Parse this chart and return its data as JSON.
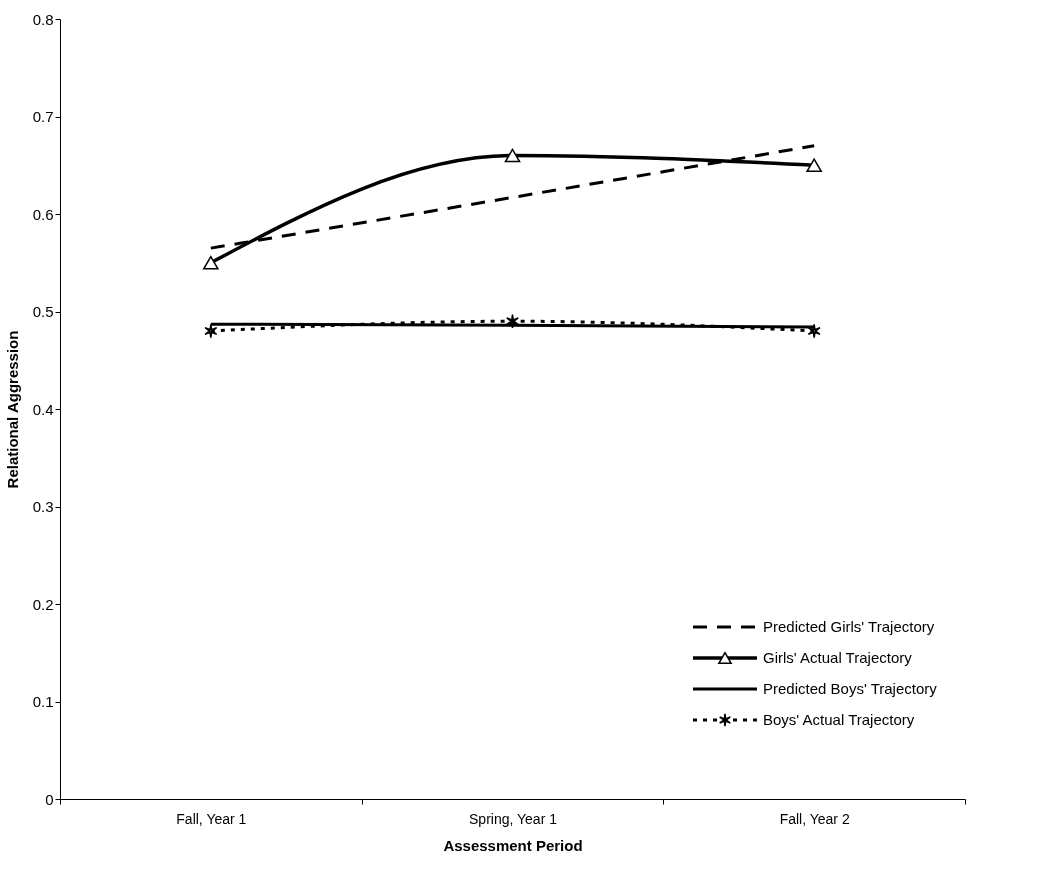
{
  "chart_data": {
    "type": "line",
    "xlabel": "Assessment Period",
    "ylabel": "Relational Aggression",
    "categories": [
      "Fall, Year 1",
      "Spring, Year 1",
      "Fall, Year 2"
    ],
    "series": [
      {
        "name": "Predicted Girls' Trajectory",
        "color": "#000000",
        "values": [
          0.565,
          0.617,
          0.67
        ],
        "line_style": "dashed",
        "marker": "none"
      },
      {
        "name": "Girls' Actual Trajectory",
        "color": "#000000",
        "values": [
          0.55,
          0.66,
          0.65
        ],
        "line_style": "solid",
        "marker": "triangle"
      },
      {
        "name": "Predicted Boys' Trajectory",
        "color": "#000000",
        "values": [
          0.487,
          0.486,
          0.484
        ],
        "line_style": "solid",
        "marker": "none"
      },
      {
        "name": "Boys' Actual Trajectory",
        "color": "#000000",
        "values": [
          0.48,
          0.49,
          0.48
        ],
        "line_style": "dotted",
        "marker": "cross"
      }
    ],
    "ylim": [
      0,
      0.8
    ],
    "yticks": [
      0,
      0.1,
      0.2,
      0.3,
      0.4,
      0.5,
      0.6,
      0.7,
      0.8
    ],
    "grid": false,
    "legend": "bottom right"
  }
}
